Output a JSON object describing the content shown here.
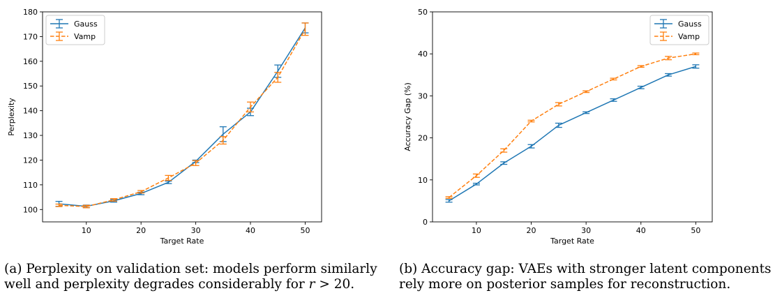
{
  "chart_data": [
    {
      "type": "line",
      "xlabel": "Target Rate",
      "ylabel": "Perplexity",
      "xlim": [
        2,
        53
      ],
      "ylim": [
        95,
        180
      ],
      "xticks": [
        10,
        20,
        30,
        40,
        50
      ],
      "yticks": [
        100,
        110,
        120,
        130,
        140,
        150,
        160,
        170,
        180
      ],
      "grid": false,
      "legend_position": "top-left",
      "x": [
        5,
        10,
        15,
        20,
        25,
        30,
        35,
        40,
        45,
        50
      ],
      "series": [
        {
          "name": "Gauss",
          "color": "#1f77b4",
          "style": "solid",
          "values": [
            102.3,
            101.3,
            103.5,
            106.5,
            111.0,
            119.5,
            130.5,
            139.5,
            156.0,
            173.5
          ],
          "errors": [
            1.0,
            0.5,
            0.5,
            0.5,
            0.5,
            0.5,
            3.0,
            1.5,
            2.5,
            2.0
          ]
        },
        {
          "name": "Vamp",
          "color": "#ff7f0e",
          "style": "dashed",
          "values": [
            101.7,
            101.2,
            103.9,
            107.2,
            112.8,
            118.8,
            128.0,
            141.5,
            153.5,
            173.0
          ],
          "errors": [
            0.5,
            0.5,
            0.5,
            0.5,
            1.0,
            1.0,
            1.5,
            2.0,
            2.0,
            2.5
          ]
        }
      ]
    },
    {
      "type": "line",
      "xlabel": "Target Rate",
      "ylabel": "Accuracy Gap (%)",
      "xlim": [
        2,
        53
      ],
      "ylim": [
        0,
        50
      ],
      "xticks": [
        10,
        20,
        30,
        40,
        50
      ],
      "yticks": [
        0,
        10,
        20,
        30,
        40,
        50
      ],
      "grid": false,
      "legend_position": "top-right",
      "x": [
        5,
        10,
        15,
        20,
        25,
        30,
        35,
        40,
        45,
        50
      ],
      "series": [
        {
          "name": "Gauss",
          "color": "#1f77b4",
          "style": "solid",
          "values": [
            5.0,
            9.0,
            14.0,
            18.0,
            23.0,
            26.0,
            29.0,
            32.0,
            35.0,
            37.0
          ],
          "errors": [
            0.3,
            0.2,
            0.3,
            0.4,
            0.5,
            0.2,
            0.3,
            0.3,
            0.3,
            0.4
          ]
        },
        {
          "name": "Vamp",
          "color": "#ff7f0e",
          "style": "dashed",
          "values": [
            5.8,
            11.0,
            17.0,
            24.0,
            28.0,
            31.0,
            34.0,
            37.0,
            39.0,
            40.0
          ],
          "errors": [
            0.2,
            0.4,
            0.4,
            0.2,
            0.4,
            0.2,
            0.2,
            0.2,
            0.4,
            0.2
          ]
        }
      ]
    }
  ],
  "captions": {
    "a_line1": "(a) Perplexity on validation set: models perform similarly",
    "a_line2_text": "well and perplexity degrades considerably for ",
    "a_line2_var": "r",
    "a_line2_op": " > 20.",
    "b_line1": "(b) Accuracy gap: VAEs with stronger latent components",
    "b_line2": "rely more on posterior samples for reconstruction."
  }
}
